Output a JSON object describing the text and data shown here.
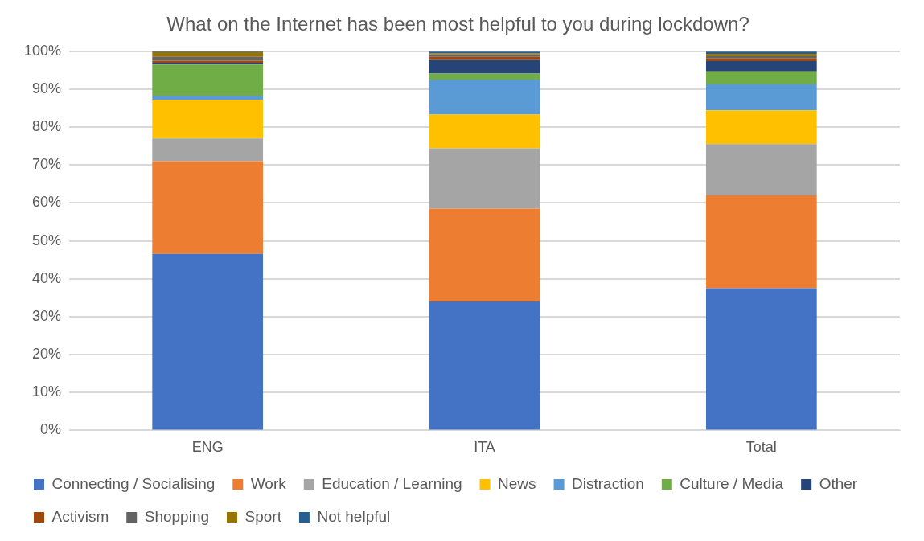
{
  "chart_data": {
    "type": "bar",
    "stacked": true,
    "title": "What on the Internet has been most helpful to you during lockdown?",
    "categories": [
      "ENG",
      "ITA",
      "Total"
    ],
    "series": [
      {
        "name": "Connecting / Socialising",
        "color": "#4472c4",
        "values": [
          46.6,
          34.0,
          37.5
        ]
      },
      {
        "name": "Work",
        "color": "#ed7d31",
        "values": [
          24.4,
          24.5,
          24.5
        ]
      },
      {
        "name": "Education / Learning",
        "color": "#a5a5a5",
        "values": [
          6.0,
          15.9,
          13.5
        ]
      },
      {
        "name": "News",
        "color": "#ffc000",
        "values": [
          10.2,
          8.9,
          8.9
        ]
      },
      {
        "name": "Distraction",
        "color": "#5b9bd5",
        "values": [
          1.0,
          9.2,
          6.9
        ]
      },
      {
        "name": "Culture / Media",
        "color": "#70ad47",
        "values": [
          8.3,
          1.6,
          3.4
        ]
      },
      {
        "name": "Other",
        "color": "#264478",
        "values": [
          0.5,
          3.6,
          2.7
        ]
      },
      {
        "name": "Activism",
        "color": "#9e480e",
        "values": [
          0.5,
          0.8,
          0.7
        ]
      },
      {
        "name": "Shopping",
        "color": "#636363",
        "values": [
          1.0,
          0.7,
          0.6
        ]
      },
      {
        "name": "Sport",
        "color": "#997300",
        "values": [
          1.3,
          0.3,
          0.6
        ]
      },
      {
        "name": "Not helpful",
        "color": "#255e91",
        "values": [
          0.2,
          0.4,
          0.6
        ]
      }
    ],
    "ylim": [
      0,
      100
    ],
    "yticks": [
      {
        "value": 0,
        "label": "0%"
      },
      {
        "value": 10,
        "label": "10%"
      },
      {
        "value": 20,
        "label": "20%"
      },
      {
        "value": 30,
        "label": "30%"
      },
      {
        "value": 40,
        "label": "40%"
      },
      {
        "value": 50,
        "label": "50%"
      },
      {
        "value": 60,
        "label": "60%"
      },
      {
        "value": 70,
        "label": "70%"
      },
      {
        "value": 80,
        "label": "80%"
      },
      {
        "value": 90,
        "label": "90%"
      },
      {
        "value": 100,
        "label": "100%"
      }
    ],
    "grid": "y",
    "legend": "bottom"
  }
}
